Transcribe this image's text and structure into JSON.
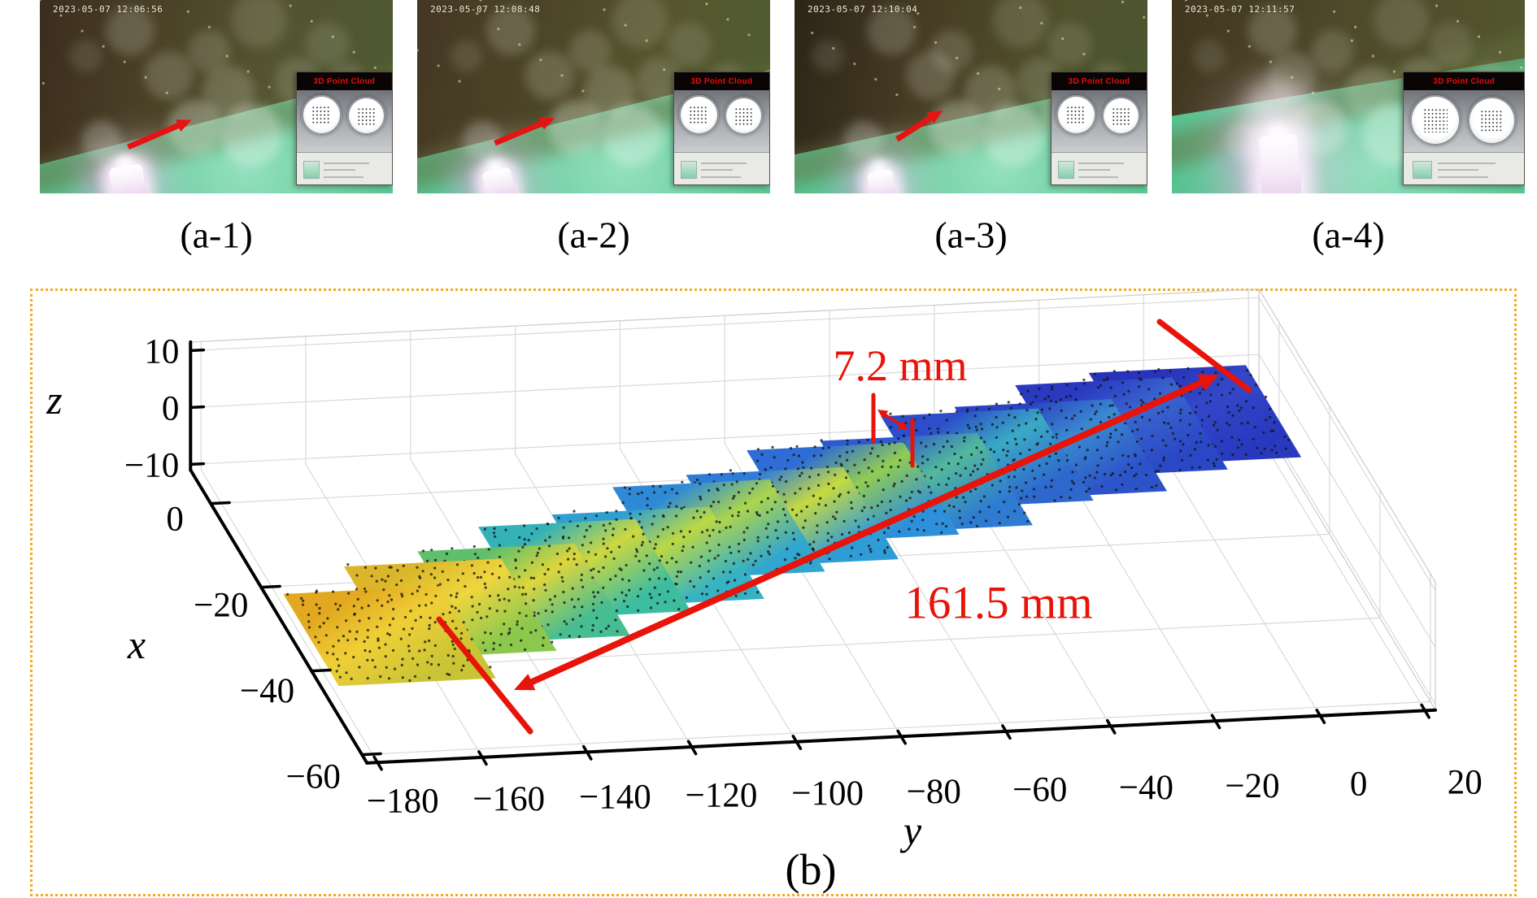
{
  "figure": {
    "photos": [
      {
        "label": "(a-1)",
        "timestamp": "2023-05-07 12:06:56",
        "inset_title": "3D Point Cloud"
      },
      {
        "label": "(a-2)",
        "timestamp": "2023-05-07 12:08:48",
        "inset_title": "3D Point Cloud"
      },
      {
        "label": "(a-3)",
        "timestamp": "2023-05-07 12:10:04",
        "inset_title": "3D Point Cloud"
      },
      {
        "label": "(a-4)",
        "timestamp": "2023-05-07 12:11:57",
        "inset_title": "3D Point Cloud"
      }
    ],
    "panel_b": {
      "label": "(b)",
      "border_color": "#f0ab1f",
      "annotation_color": "#e81309",
      "annotations": {
        "step": {
          "text": "7.2 mm",
          "value_mm": 7.2
        },
        "length": {
          "text": "161.5 mm",
          "value_mm": 161.5
        }
      },
      "axis_labels": {
        "x": "x",
        "y": "y",
        "z": "z"
      },
      "chart_data": {
        "type": "scatter",
        "projection": "3d",
        "title": "",
        "xlabel": "x",
        "ylabel": "y",
        "zlabel": "z",
        "xticks": [
          0,
          -20,
          -40,
          -60
        ],
        "yticks": [
          -180,
          -160,
          -140,
          -120,
          -100,
          -80,
          -60,
          -40,
          -20,
          0,
          20
        ],
        "zticks": [
          10,
          0,
          -10
        ],
        "xlim": [
          -62,
          8
        ],
        "ylim": [
          -182,
          22
        ],
        "zlim": [
          -11,
          11.5
        ],
        "grid": true,
        "legend": false,
        "measurements": [
          {
            "text": "7.2 mm",
            "value_mm": 7.2,
            "meaning": "step height between adjacent scan rows"
          },
          {
            "text": "161.5 mm",
            "value_mm": 161.5,
            "meaning": "total scanned strip length"
          }
        ],
        "surface_strip": {
          "description": "stepped strip of square scan patches of a 3D point cloud, colored by height (blue low, yellow high), running from (x=-46,y=-170) to (x=-4,y=4)",
          "patch_half_size": {
            "x": 11,
            "y": 15
          },
          "patches": [
            {
              "cx": -46,
              "cy": -170,
              "z": -1.0,
              "colors": [
                "#e2a81f",
                "#efcf36",
                "#c9c435"
              ]
            },
            {
              "cx": -41,
              "cy": -156,
              "z": -0.5,
              "colors": [
                "#dbb62a",
                "#eed63e",
                "#8cc84e"
              ]
            },
            {
              "cx": -39,
              "cy": -141,
              "z": 0.0,
              "colors": [
                "#5fbf6a",
                "#ddd63c",
                "#46bd92"
              ]
            },
            {
              "cx": -34,
              "cy": -127,
              "z": 0.0,
              "colors": [
                "#35b2b8",
                "#cdd83e",
                "#3cbda0"
              ]
            },
            {
              "cx": -32,
              "cy": -112,
              "z": 0.0,
              "colors": [
                "#2f9fd2",
                "#bcd844",
                "#35b2c4"
              ]
            },
            {
              "cx": -27,
              "cy": -98,
              "z": 0.5,
              "colors": [
                "#2f8ad6",
                "#abd54c",
                "#31a6ce"
              ]
            },
            {
              "cx": -25,
              "cy": -83,
              "z": 0.5,
              "colors": [
                "#2f7cd8",
                "#c6da40",
                "#2f9cd8"
              ]
            },
            {
              "cx": -20,
              "cy": -69,
              "z": 0.5,
              "colors": [
                "#2e6cd6",
                "#90cc54",
                "#2e90da"
              ]
            },
            {
              "cx": -18,
              "cy": -54,
              "z": 0.0,
              "colors": [
                "#2e5ad0",
                "#52b99c",
                "#2e7cd2"
              ]
            },
            {
              "cx": -13,
              "cy": -40,
              "z": 0.0,
              "colors": [
                "#2c4eca",
                "#3aaac4",
                "#2e68ce"
              ]
            },
            {
              "cx": -11,
              "cy": -25,
              "z": -0.5,
              "colors": [
                "#2a44c4",
                "#3a8ad0",
                "#2c54ca"
              ]
            },
            {
              "cx": -6,
              "cy": -11,
              "z": -1.0,
              "colors": [
                "#2939c0",
                "#3a66ce",
                "#2a48c6"
              ]
            },
            {
              "cx": -4,
              "cy": 4,
              "z": -1.0,
              "colors": [
                "#2733ba",
                "#3348c8",
                "#2839c0"
              ]
            }
          ]
        }
      }
    }
  }
}
